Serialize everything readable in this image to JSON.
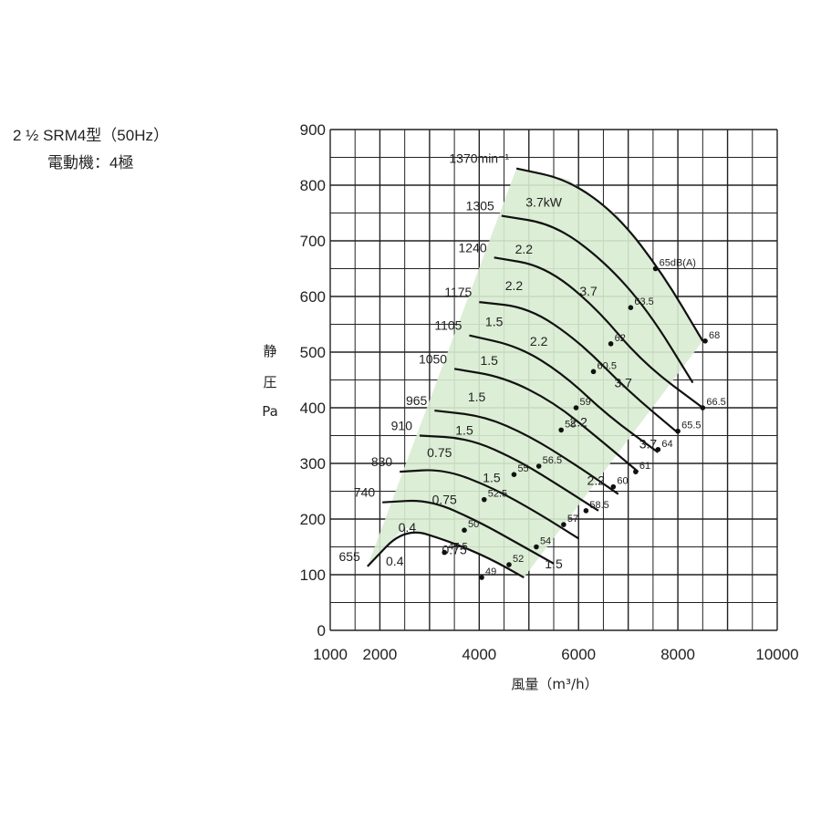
{
  "header": {
    "model": "2 ½  SRM4型（50Hz）",
    "motor": "電動機：4極"
  },
  "chart_data": {
    "type": "line",
    "xlabel": "風量（m³/h）",
    "ylabel_chars": [
      "静",
      "圧",
      "Pa"
    ],
    "xlim": [
      1000,
      10000
    ],
    "ylim": [
      0,
      900
    ],
    "x_ticks": [
      1000,
      2000,
      4000,
      6000,
      8000,
      10000
    ],
    "y_ticks": [
      0,
      100,
      200,
      300,
      400,
      500,
      600,
      700,
      800,
      900
    ],
    "grid": true,
    "operating_region_color": "#d8ecd0",
    "speed_curves": [
      {
        "label": "1370min⁻¹",
        "points": [
          [
            4750,
            830
          ],
          [
            5800,
            810
          ],
          [
            6800,
            745
          ],
          [
            7700,
            640
          ],
          [
            8500,
            520
          ]
        ]
      },
      {
        "label": "1305",
        "points": [
          [
            4450,
            745
          ],
          [
            5500,
            730
          ],
          [
            6500,
            665
          ],
          [
            7400,
            575
          ],
          [
            8300,
            445
          ]
        ]
      },
      {
        "label": "1240",
        "points": [
          [
            4300,
            670
          ],
          [
            5300,
            655
          ],
          [
            6300,
            585
          ],
          [
            7300,
            480
          ],
          [
            8500,
            400
          ]
        ]
      },
      {
        "label": "1175",
        "points": [
          [
            4000,
            590
          ],
          [
            5000,
            580
          ],
          [
            6000,
            520
          ],
          [
            7000,
            430
          ],
          [
            8000,
            355
          ]
        ]
      },
      {
        "label": "1105",
        "points": [
          [
            3800,
            530
          ],
          [
            4800,
            510
          ],
          [
            5700,
            460
          ],
          [
            6600,
            385
          ],
          [
            7600,
            320
          ]
        ]
      },
      {
        "label": "1050",
        "points": [
          [
            3500,
            470
          ],
          [
            4500,
            455
          ],
          [
            5500,
            410
          ],
          [
            6400,
            345
          ],
          [
            7200,
            285
          ]
        ]
      },
      {
        "label": "965",
        "points": [
          [
            3100,
            395
          ],
          [
            4100,
            385
          ],
          [
            5000,
            350
          ],
          [
            5900,
            300
          ],
          [
            6800,
            245
          ]
        ]
      },
      {
        "label": "910",
        "points": [
          [
            2800,
            350
          ],
          [
            3800,
            345
          ],
          [
            4800,
            305
          ],
          [
            5700,
            255
          ],
          [
            6400,
            215
          ]
        ]
      },
      {
        "label": "830",
        "points": [
          [
            2400,
            285
          ],
          [
            3300,
            290
          ],
          [
            4300,
            255
          ],
          [
            5200,
            210
          ],
          [
            6000,
            165
          ]
        ]
      },
      {
        "label": "740",
        "points": [
          [
            2050,
            230
          ],
          [
            3000,
            235
          ],
          [
            4000,
            195
          ],
          [
            4800,
            155
          ],
          [
            5500,
            120
          ]
        ]
      },
      {
        "label": "655",
        "points": [
          [
            1750,
            115
          ],
          [
            2500,
            185
          ],
          [
            3400,
            160
          ],
          [
            4200,
            130
          ],
          [
            4900,
            95
          ]
        ]
      }
    ],
    "power_labels": [
      {
        "label": "3.7kW",
        "x": 5300,
        "y": 770
      },
      {
        "label": "2.2",
        "x": 4900,
        "y": 685
      },
      {
        "label": "2.2",
        "x": 4700,
        "y": 620
      },
      {
        "label": "3.7",
        "x": 6200,
        "y": 610
      },
      {
        "label": "1.5",
        "x": 4300,
        "y": 555
      },
      {
        "label": "2.2",
        "x": 5200,
        "y": 520
      },
      {
        "label": "1.5",
        "x": 4200,
        "y": 485
      },
      {
        "label": "3.7",
        "x": 6900,
        "y": 445
      },
      {
        "label": "1.5",
        "x": 3950,
        "y": 420
      },
      {
        "label": "2.2",
        "x": 6000,
        "y": 375
      },
      {
        "label": "1.5",
        "x": 3700,
        "y": 360
      },
      {
        "label": "3.7",
        "x": 7400,
        "y": 335
      },
      {
        "label": "0.75",
        "x": 3200,
        "y": 320
      },
      {
        "label": "1.5",
        "x": 4250,
        "y": 275
      },
      {
        "label": "2.2",
        "x": 6350,
        "y": 270
      },
      {
        "label": "0.75",
        "x": 3300,
        "y": 235
      },
      {
        "label": "0.4",
        "x": 2550,
        "y": 185
      },
      {
        "label": "0.75",
        "x": 3500,
        "y": 145
      },
      {
        "label": "0.4",
        "x": 2300,
        "y": 125
      },
      {
        "label": "1.5",
        "x": 5500,
        "y": 120
      }
    ],
    "noise_points": [
      {
        "label": "65dB(A)",
        "x": 7550,
        "y": 650
      },
      {
        "label": "63.5",
        "x": 7050,
        "y": 580
      },
      {
        "label": "62",
        "x": 6650,
        "y": 515
      },
      {
        "label": "60.5",
        "x": 6300,
        "y": 465
      },
      {
        "label": "59",
        "x": 5950,
        "y": 400
      },
      {
        "label": "58",
        "x": 5650,
        "y": 360
      },
      {
        "label": "56.5",
        "x": 5200,
        "y": 295
      },
      {
        "label": "55",
        "x": 4700,
        "y": 280
      },
      {
        "label": "52.5",
        "x": 4100,
        "y": 235
      },
      {
        "label": "50",
        "x": 3700,
        "y": 180
      },
      {
        "label": "47.5",
        "x": 3300,
        "y": 140
      },
      {
        "label": "49",
        "x": 4050,
        "y": 95
      },
      {
        "label": "52",
        "x": 4600,
        "y": 118
      },
      {
        "label": "54",
        "x": 5150,
        "y": 150
      },
      {
        "label": "57",
        "x": 5700,
        "y": 190
      },
      {
        "label": "58.5",
        "x": 6150,
        "y": 215
      },
      {
        "label": "60",
        "x": 6700,
        "y": 258
      },
      {
        "label": "61",
        "x": 7150,
        "y": 285
      },
      {
        "label": "64",
        "x": 7600,
        "y": 325
      },
      {
        "label": "65.5",
        "x": 8000,
        "y": 358
      },
      {
        "label": "66.5",
        "x": 8500,
        "y": 400
      },
      {
        "label": "68",
        "x": 8550,
        "y": 520
      }
    ]
  }
}
